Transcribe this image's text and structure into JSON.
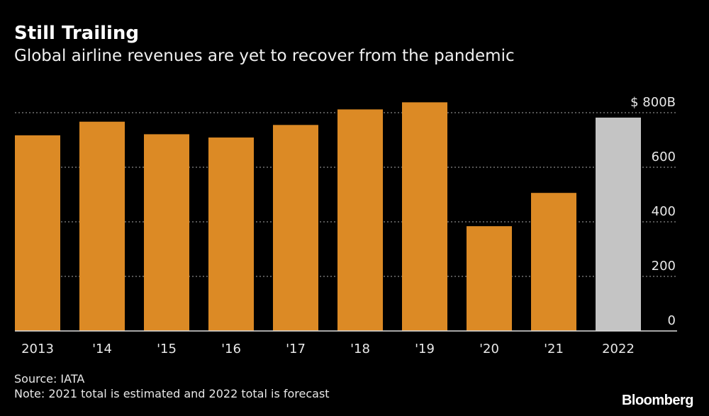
{
  "chart_data": {
    "type": "bar",
    "title": "Still Trailing",
    "subtitle": "Global airline revenues are yet to recover from the pandemic",
    "categories": [
      "2013",
      "'14",
      "'15",
      "'16",
      "'17",
      "'18",
      "'19",
      "'20",
      "'21",
      "2022"
    ],
    "values": [
      717,
      767,
      721,
      709,
      755,
      812,
      838,
      384,
      506,
      782
    ],
    "highlight": [
      false,
      false,
      false,
      false,
      false,
      false,
      false,
      false,
      false,
      true
    ],
    "ylim": [
      0,
      800
    ],
    "yticks": [
      0,
      200,
      400,
      600,
      800
    ],
    "ytick_labels": [
      "0",
      "200",
      "400",
      "600",
      "$ 800B"
    ],
    "xlabel": "",
    "ylabel": "",
    "grid": true,
    "colors": {
      "bar": "#dc8a25",
      "forecast": "#c4c4c4",
      "grid": "#888888"
    }
  },
  "footer": {
    "source": "Source: IATA",
    "note": "Note: 2021 total is estimated and 2022 total is forecast",
    "logo": "Bloomberg"
  }
}
